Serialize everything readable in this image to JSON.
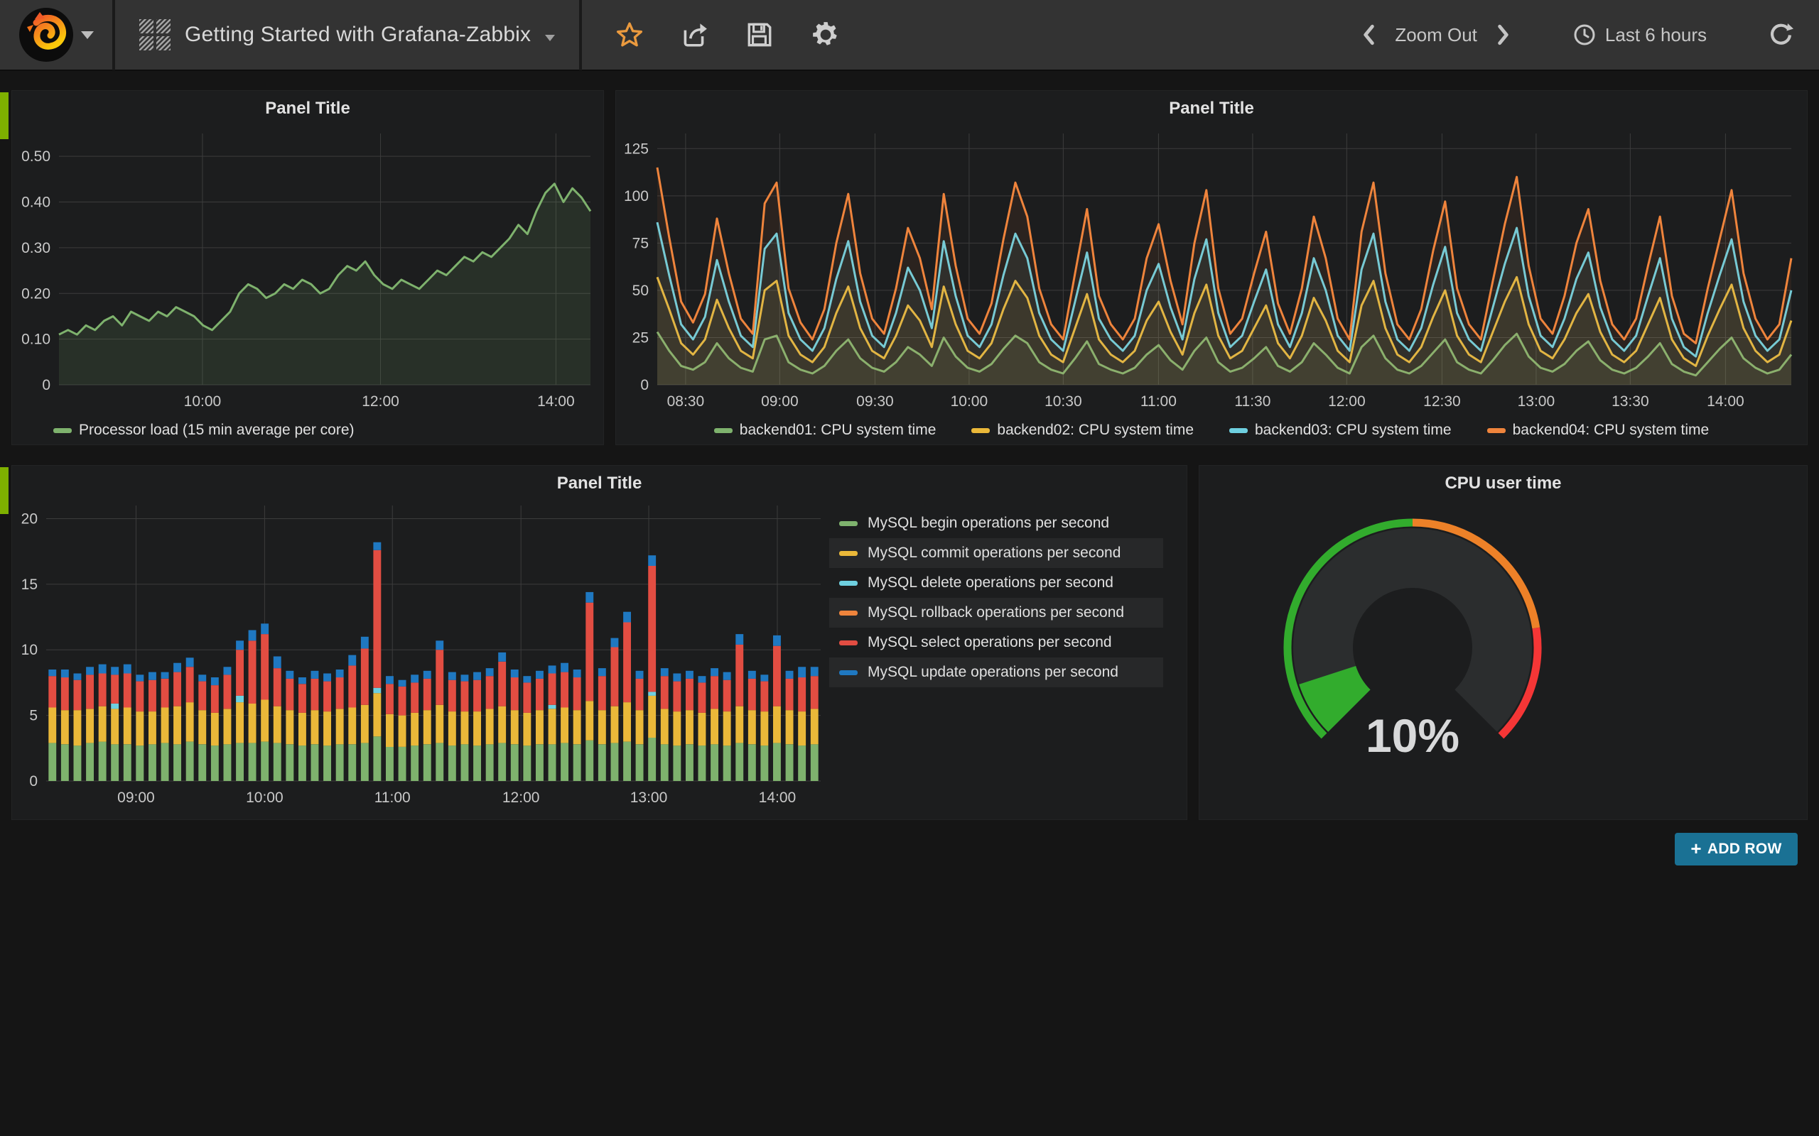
{
  "navbar": {
    "title": "Getting Started with Grafana-Zabbix",
    "zoom_out": "Zoom Out",
    "time_range": "Last 6 hours"
  },
  "buttons": {
    "add_row_plus": "+",
    "add_row": "ADD ROW"
  },
  "colors": {
    "page_bg": "#151515",
    "navbar_bg": "#333333",
    "panel_bg": "#1c1d1e",
    "grid": "#3c3c3c",
    "row_tab": "#7eb000",
    "add_row_bg": "#1a7194",
    "star": "#eb9a3e",
    "text": "#d8d9da"
  },
  "chart_data": [
    {
      "id": "processor-load",
      "type": "line",
      "title": "Panel Title",
      "ylim": [
        0,
        0.55
      ],
      "fill_opacity": 0.13,
      "grid": true,
      "legend_position": "bottom-left",
      "yticks": [
        {
          "v": 0,
          "label": "0"
        },
        {
          "v": 0.1,
          "label": "0.10"
        },
        {
          "v": 0.2,
          "label": "0.20"
        },
        {
          "v": 0.3,
          "label": "0.30"
        },
        {
          "v": 0.4,
          "label": "0.40"
        },
        {
          "v": 0.5,
          "label": "0.50"
        }
      ],
      "xticks": [
        {
          "f": 0.27,
          "label": "10:00"
        },
        {
          "f": 0.605,
          "label": "12:00"
        },
        {
          "f": 0.935,
          "label": "14:00"
        }
      ],
      "series": [
        {
          "name": "Processor load (15 min average per core)",
          "color": "#7eb26d",
          "values": [
            0.11,
            0.12,
            0.11,
            0.13,
            0.12,
            0.14,
            0.15,
            0.13,
            0.16,
            0.15,
            0.14,
            0.16,
            0.15,
            0.17,
            0.16,
            0.15,
            0.13,
            0.12,
            0.14,
            0.16,
            0.2,
            0.22,
            0.21,
            0.19,
            0.2,
            0.22,
            0.21,
            0.23,
            0.22,
            0.2,
            0.21,
            0.24,
            0.26,
            0.25,
            0.27,
            0.24,
            0.22,
            0.21,
            0.23,
            0.22,
            0.21,
            0.23,
            0.25,
            0.24,
            0.26,
            0.28,
            0.27,
            0.29,
            0.28,
            0.3,
            0.32,
            0.35,
            0.33,
            0.38,
            0.42,
            0.44,
            0.4,
            0.43,
            0.41,
            0.38
          ]
        }
      ]
    },
    {
      "id": "cpu-system-time",
      "type": "line",
      "title": "Panel Title",
      "ylim": [
        0,
        133
      ],
      "fill_opacity": 0.07,
      "grid": true,
      "legend_position": "bottom-center",
      "yticks": [
        {
          "v": 0,
          "label": "0"
        },
        {
          "v": 25,
          "label": "25"
        },
        {
          "v": 50,
          "label": "50"
        },
        {
          "v": 75,
          "label": "75"
        },
        {
          "v": 100,
          "label": "100"
        },
        {
          "v": 125,
          "label": "125"
        }
      ],
      "xticks": [
        {
          "f": 0.025,
          "label": "08:30"
        },
        {
          "f": 0.108,
          "label": "09:00"
        },
        {
          "f": 0.192,
          "label": "09:30"
        },
        {
          "f": 0.275,
          "label": "10:00"
        },
        {
          "f": 0.358,
          "label": "10:30"
        },
        {
          "f": 0.442,
          "label": "11:00"
        },
        {
          "f": 0.525,
          "label": "11:30"
        },
        {
          "f": 0.608,
          "label": "12:00"
        },
        {
          "f": 0.692,
          "label": "12:30"
        },
        {
          "f": 0.775,
          "label": "13:00"
        },
        {
          "f": 0.858,
          "label": "13:30"
        },
        {
          "f": 0.942,
          "label": "14:00"
        }
      ],
      "series": [
        {
          "name": "backend01: CPU system time",
          "color": "#7eb26d",
          "values": [
            28,
            18,
            10,
            8,
            12,
            22,
            14,
            9,
            7,
            24,
            26,
            12,
            8,
            6,
            10,
            18,
            24,
            14,
            9,
            7,
            12,
            20,
            16,
            10,
            25,
            15,
            9,
            7,
            11,
            19,
            26,
            22,
            12,
            8,
            6,
            14,
            23,
            11,
            8,
            6,
            9,
            16,
            21,
            13,
            8,
            18,
            25,
            12,
            7,
            9,
            14,
            20,
            10,
            7,
            12,
            22,
            16,
            9,
            6,
            20,
            26,
            14,
            8,
            6,
            10,
            17,
            24,
            12,
            8,
            6,
            13,
            21,
            27,
            15,
            9,
            7,
            11,
            18,
            23,
            13,
            8,
            6,
            9,
            15,
            22,
            11,
            7,
            5,
            12,
            19,
            25,
            14,
            9,
            6,
            8,
            16
          ]
        },
        {
          "name": "backend02: CPU system time",
          "color": "#eab839",
          "values": [
            57,
            40,
            22,
            16,
            24,
            45,
            30,
            18,
            14,
            50,
            55,
            26,
            16,
            12,
            20,
            38,
            52,
            30,
            18,
            14,
            26,
            42,
            34,
            20,
            52,
            32,
            18,
            14,
            22,
            40,
            55,
            46,
            26,
            16,
            12,
            30,
            48,
            24,
            16,
            12,
            18,
            34,
            44,
            28,
            16,
            38,
            53,
            26,
            14,
            18,
            30,
            42,
            22,
            14,
            26,
            46,
            34,
            18,
            12,
            42,
            55,
            30,
            16,
            12,
            20,
            36,
            50,
            26,
            16,
            12,
            28,
            44,
            57,
            32,
            18,
            14,
            24,
            38,
            48,
            28,
            16,
            12,
            18,
            32,
            46,
            24,
            14,
            10,
            26,
            40,
            53,
            30,
            18,
            12,
            16,
            34
          ]
        },
        {
          "name": "backend03: CPU system time",
          "color": "#6ed0e0",
          "values": [
            86,
            58,
            32,
            24,
            36,
            66,
            44,
            26,
            20,
            72,
            80,
            38,
            24,
            18,
            30,
            56,
            76,
            44,
            26,
            20,
            38,
            62,
            50,
            30,
            76,
            47,
            26,
            20,
            32,
            58,
            80,
            67,
            38,
            24,
            18,
            44,
            70,
            35,
            24,
            18,
            26,
            50,
            64,
            41,
            24,
            56,
            77,
            38,
            20,
            26,
            44,
            61,
            32,
            20,
            38,
            67,
            50,
            26,
            18,
            61,
            80,
            44,
            24,
            18,
            30,
            53,
            73,
            38,
            24,
            18,
            41,
            64,
            83,
            47,
            26,
            20,
            35,
            56,
            70,
            41,
            24,
            18,
            26,
            47,
            67,
            35,
            20,
            15,
            38,
            58,
            77,
            44,
            26,
            18,
            24,
            50
          ]
        },
        {
          "name": "backend04: CPU system time",
          "color": "#ef843c",
          "values": [
            115,
            78,
            44,
            33,
            48,
            88,
            59,
            35,
            27,
            96,
            107,
            51,
            33,
            24,
            40,
            75,
            101,
            59,
            35,
            27,
            51,
            83,
            67,
            40,
            101,
            63,
            35,
            27,
            43,
            77,
            107,
            89,
            51,
            32,
            24,
            59,
            93,
            47,
            32,
            24,
            35,
            67,
            85,
            55,
            32,
            75,
            103,
            51,
            27,
            35,
            59,
            81,
            43,
            27,
            51,
            89,
            67,
            35,
            24,
            81,
            107,
            59,
            32,
            24,
            40,
            71,
            97,
            51,
            32,
            24,
            55,
            85,
            110,
            63,
            35,
            27,
            47,
            75,
            93,
            55,
            32,
            24,
            35,
            63,
            89,
            47,
            27,
            22,
            51,
            77,
            103,
            59,
            35,
            24,
            32,
            67
          ]
        }
      ]
    },
    {
      "id": "mysql-operations",
      "type": "bar",
      "title": "Panel Title",
      "ylim": [
        0,
        21
      ],
      "grid": true,
      "legend_position": "right",
      "yticks": [
        {
          "v": 0,
          "label": "0"
        },
        {
          "v": 5,
          "label": "5"
        },
        {
          "v": 10,
          "label": "10"
        },
        {
          "v": 15,
          "label": "15"
        },
        {
          "v": 20,
          "label": "20"
        }
      ],
      "xticks": [
        {
          "f": 0.116,
          "label": "09:00"
        },
        {
          "f": 0.282,
          "label": "10:00"
        },
        {
          "f": 0.447,
          "label": "11:00"
        },
        {
          "f": 0.613,
          "label": "12:00"
        },
        {
          "f": 0.778,
          "label": "13:00"
        },
        {
          "f": 0.944,
          "label": "14:00"
        }
      ],
      "series": [
        {
          "name": "MySQL begin operations per second",
          "color": "#7eb26d"
        },
        {
          "name": "MySQL commit operations per second",
          "color": "#eab839"
        },
        {
          "name": "MySQL delete operations per second",
          "color": "#6ed0e0"
        },
        {
          "name": "MySQL rollback operations per second",
          "color": "#ef843c"
        },
        {
          "name": "MySQL select operations per second",
          "color": "#e24d42"
        },
        {
          "name": "MySQL update operations per second",
          "color": "#1f78c1"
        }
      ],
      "bars": [
        [
          2.9,
          2.7,
          0,
          0,
          2.4,
          0.5
        ],
        [
          2.8,
          2.6,
          0,
          0,
          2.5,
          0.6
        ],
        [
          2.7,
          2.7,
          0,
          0,
          2.3,
          0.5
        ],
        [
          2.9,
          2.6,
          0,
          0,
          2.6,
          0.6
        ],
        [
          3.0,
          2.7,
          0,
          0,
          2.5,
          0.7
        ],
        [
          2.8,
          2.7,
          0.4,
          0,
          2.2,
          0.6
        ],
        [
          2.8,
          2.8,
          0,
          0,
          2.6,
          0.7
        ],
        [
          2.7,
          2.6,
          0,
          0,
          2.3,
          0.5
        ],
        [
          2.8,
          2.5,
          0,
          0,
          2.4,
          0.6
        ],
        [
          2.9,
          2.7,
          0,
          0,
          2.2,
          0.5
        ],
        [
          2.8,
          2.9,
          0,
          0,
          2.6,
          0.7
        ],
        [
          3.0,
          3.0,
          0,
          0,
          2.7,
          0.7
        ],
        [
          2.8,
          2.6,
          0,
          0,
          2.2,
          0.5
        ],
        [
          2.7,
          2.5,
          0,
          0,
          2.1,
          0.6
        ],
        [
          2.8,
          2.7,
          0,
          0,
          2.6,
          0.6
        ],
        [
          2.9,
          3.1,
          0.5,
          0,
          3.5,
          0.7
        ],
        [
          2.9,
          3.0,
          0,
          0,
          4.8,
          0.8
        ],
        [
          3.0,
          3.2,
          0,
          0,
          5.0,
          0.8
        ],
        [
          2.9,
          2.8,
          0,
          0,
          2.9,
          0.9
        ],
        [
          2.8,
          2.6,
          0,
          0,
          2.4,
          0.6
        ],
        [
          2.7,
          2.5,
          0,
          0,
          2.2,
          0.5
        ],
        [
          2.8,
          2.6,
          0,
          0,
          2.4,
          0.6
        ],
        [
          2.7,
          2.6,
          0,
          0,
          2.3,
          0.6
        ],
        [
          2.8,
          2.7,
          0,
          0,
          2.4,
          0.6
        ],
        [
          2.8,
          2.8,
          0,
          0,
          3.2,
          0.8
        ],
        [
          2.9,
          2.9,
          0,
          0,
          4.3,
          0.9
        ],
        [
          3.4,
          3.3,
          0.4,
          0,
          10.5,
          0.6
        ],
        [
          2.6,
          2.5,
          0,
          0,
          2.3,
          0.6
        ],
        [
          2.6,
          2.4,
          0,
          0,
          2.2,
          0.5
        ],
        [
          2.7,
          2.5,
          0,
          0,
          2.3,
          0.6
        ],
        [
          2.8,
          2.6,
          0,
          0,
          2.4,
          0.6
        ],
        [
          2.9,
          2.9,
          0,
          0,
          4.2,
          0.7
        ],
        [
          2.7,
          2.6,
          0,
          0,
          2.4,
          0.6
        ],
        [
          2.8,
          2.5,
          0,
          0,
          2.3,
          0.5
        ],
        [
          2.7,
          2.6,
          0,
          0,
          2.4,
          0.6
        ],
        [
          2.8,
          2.7,
          0,
          0,
          2.5,
          0.6
        ],
        [
          2.9,
          2.8,
          0,
          0,
          3.4,
          0.7
        ],
        [
          2.8,
          2.6,
          0,
          0,
          2.5,
          0.6
        ],
        [
          2.7,
          2.5,
          0,
          0,
          2.3,
          0.5
        ],
        [
          2.8,
          2.6,
          0,
          0,
          2.4,
          0.6
        ],
        [
          2.8,
          2.7,
          0.3,
          0,
          2.4,
          0.6
        ],
        [
          2.9,
          2.7,
          0,
          0,
          2.7,
          0.7
        ],
        [
          2.8,
          2.6,
          0,
          0,
          2.5,
          0.6
        ],
        [
          3.1,
          3.0,
          0,
          0,
          7.5,
          0.8
        ],
        [
          2.8,
          2.6,
          0,
          0,
          2.6,
          0.6
        ],
        [
          2.9,
          2.8,
          0,
          0,
          4.5,
          0.7
        ],
        [
          3.0,
          3.0,
          0,
          0,
          6.1,
          0.8
        ],
        [
          2.8,
          2.6,
          0,
          0,
          2.4,
          0.6
        ],
        [
          3.3,
          3.2,
          0.3,
          0,
          9.6,
          0.8
        ],
        [
          2.8,
          2.7,
          0,
          0,
          2.5,
          0.6
        ],
        [
          2.7,
          2.6,
          0,
          0,
          2.3,
          0.6
        ],
        [
          2.8,
          2.6,
          0,
          0,
          2.4,
          0.6
        ],
        [
          2.7,
          2.5,
          0,
          0,
          2.3,
          0.5
        ],
        [
          2.8,
          2.7,
          0,
          0,
          2.5,
          0.6
        ],
        [
          2.7,
          2.6,
          0,
          0,
          2.4,
          0.6
        ],
        [
          2.9,
          2.8,
          0,
          0,
          4.7,
          0.8
        ],
        [
          2.8,
          2.6,
          0,
          0,
          2.4,
          0.6
        ],
        [
          2.7,
          2.6,
          0,
          0,
          2.3,
          0.5
        ],
        [
          2.9,
          2.8,
          0,
          0,
          4.6,
          0.8
        ],
        [
          2.8,
          2.6,
          0,
          0,
          2.4,
          0.6
        ],
        [
          2.7,
          2.6,
          0,
          0,
          2.6,
          0.8
        ],
        [
          2.8,
          2.7,
          0,
          0,
          2.5,
          0.7
        ]
      ]
    },
    {
      "id": "cpu-user-time",
      "type": "gauge",
      "title": "CPU user time",
      "value": 10,
      "unit": "%",
      "min": 0,
      "max": 100,
      "value_color": "#32ac2d",
      "value_text_color": "#d8d9da",
      "thresholds": [
        {
          "to": 50,
          "color": "#32ac2d"
        },
        {
          "to": 80,
          "color": "#ed8128"
        },
        {
          "to": 100,
          "color": "#f53636"
        }
      ]
    }
  ]
}
